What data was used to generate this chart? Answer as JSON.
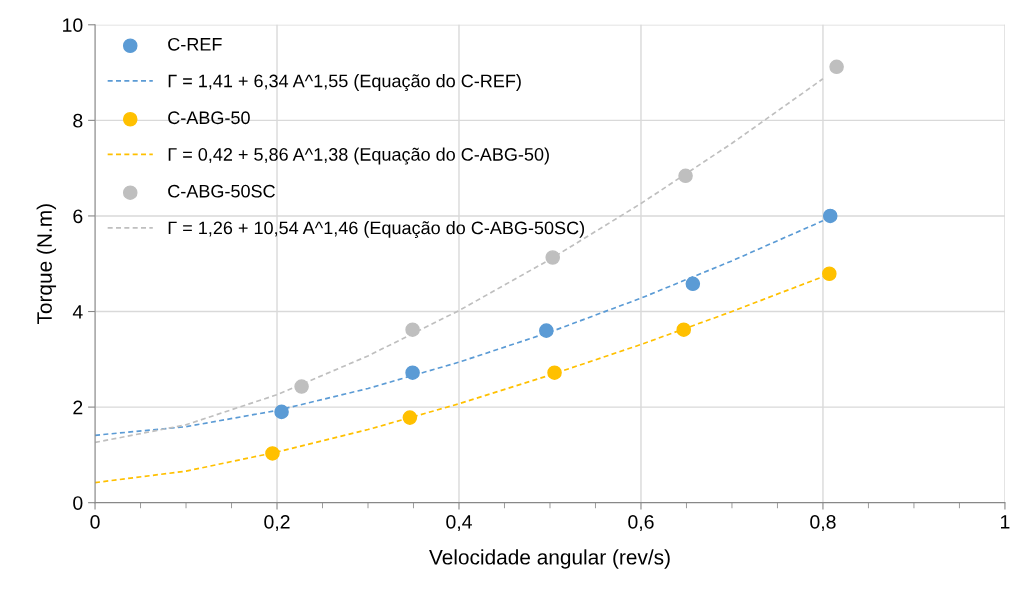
{
  "chart_data": {
    "type": "scatter",
    "xlabel": "Velocidade angular (rev/s)",
    "ylabel": "Torque (N.m)",
    "xlim": [
      0,
      1
    ],
    "ylim": [
      0,
      10
    ],
    "xticks": [
      0,
      {
        "value": 0.2,
        "label": "0,2"
      },
      {
        "value": 0.4,
        "label": "0,4"
      },
      {
        "value": 0.6,
        "label": "0,6"
      },
      {
        "value": 0.8,
        "label": "0,8"
      },
      1
    ],
    "yticks": [
      0,
      2,
      4,
      6,
      8,
      10
    ],
    "grid": true,
    "legend": "top left",
    "marker": "circle",
    "series": [
      {
        "name": "C-REF",
        "color": "#5b9bd5",
        "x": [
          0.205,
          0.349,
          0.496,
          0.657,
          0.808
        ],
        "values": [
          1.9,
          2.72,
          3.6,
          4.58,
          6.0
        ]
      },
      {
        "name": "Γ = 1,41 + 6,34 A^1,55 (Equação do C-REF)",
        "type": "line",
        "line_style": "dashed",
        "marker": "none",
        "color": "#5b9bd5",
        "x": [
          0,
          0.1,
          0.2,
          0.3,
          0.4,
          0.5,
          0.6,
          0.7,
          0.8
        ],
        "values": [
          1.41,
          1.59,
          1.93,
          2.39,
          2.94,
          3.57,
          4.28,
          5.06,
          5.9
        ]
      },
      {
        "name": "C-ABG-50",
        "color": "#ffc000",
        "x": [
          0.195,
          0.346,
          0.505,
          0.647,
          0.807
        ],
        "values": [
          1.03,
          1.78,
          2.72,
          3.62,
          4.79
        ]
      },
      {
        "name": "Γ = 0,42 + 5,86 A^1,38 (Equação do C-ABG-50)",
        "type": "line",
        "line_style": "dashed",
        "marker": "none",
        "color": "#ffc000",
        "x": [
          0,
          0.1,
          0.2,
          0.3,
          0.4,
          0.5,
          0.6,
          0.7,
          0.8
        ],
        "values": [
          0.42,
          0.66,
          1.06,
          1.53,
          2.07,
          2.67,
          3.31,
          4.0,
          4.73
        ]
      },
      {
        "name": "C-ABG-50SC",
        "color": "#bfbfbf",
        "x": [
          0.227,
          0.349,
          0.503,
          0.649,
          0.815
        ],
        "values": [
          2.43,
          3.62,
          5.13,
          6.84,
          9.12
        ]
      },
      {
        "name": "Γ = 1,26 + 10,54 A^1,46 (Equação do C-ABG-50SC)",
        "type": "line",
        "line_style": "dashed",
        "marker": "none",
        "color": "#bfbfbf",
        "x": [
          0,
          0.1,
          0.2,
          0.3,
          0.4,
          0.5,
          0.6,
          0.7,
          0.8
        ],
        "values": [
          1.26,
          1.63,
          2.26,
          3.07,
          4.02,
          5.09,
          6.26,
          7.52,
          8.87
        ]
      }
    ]
  }
}
